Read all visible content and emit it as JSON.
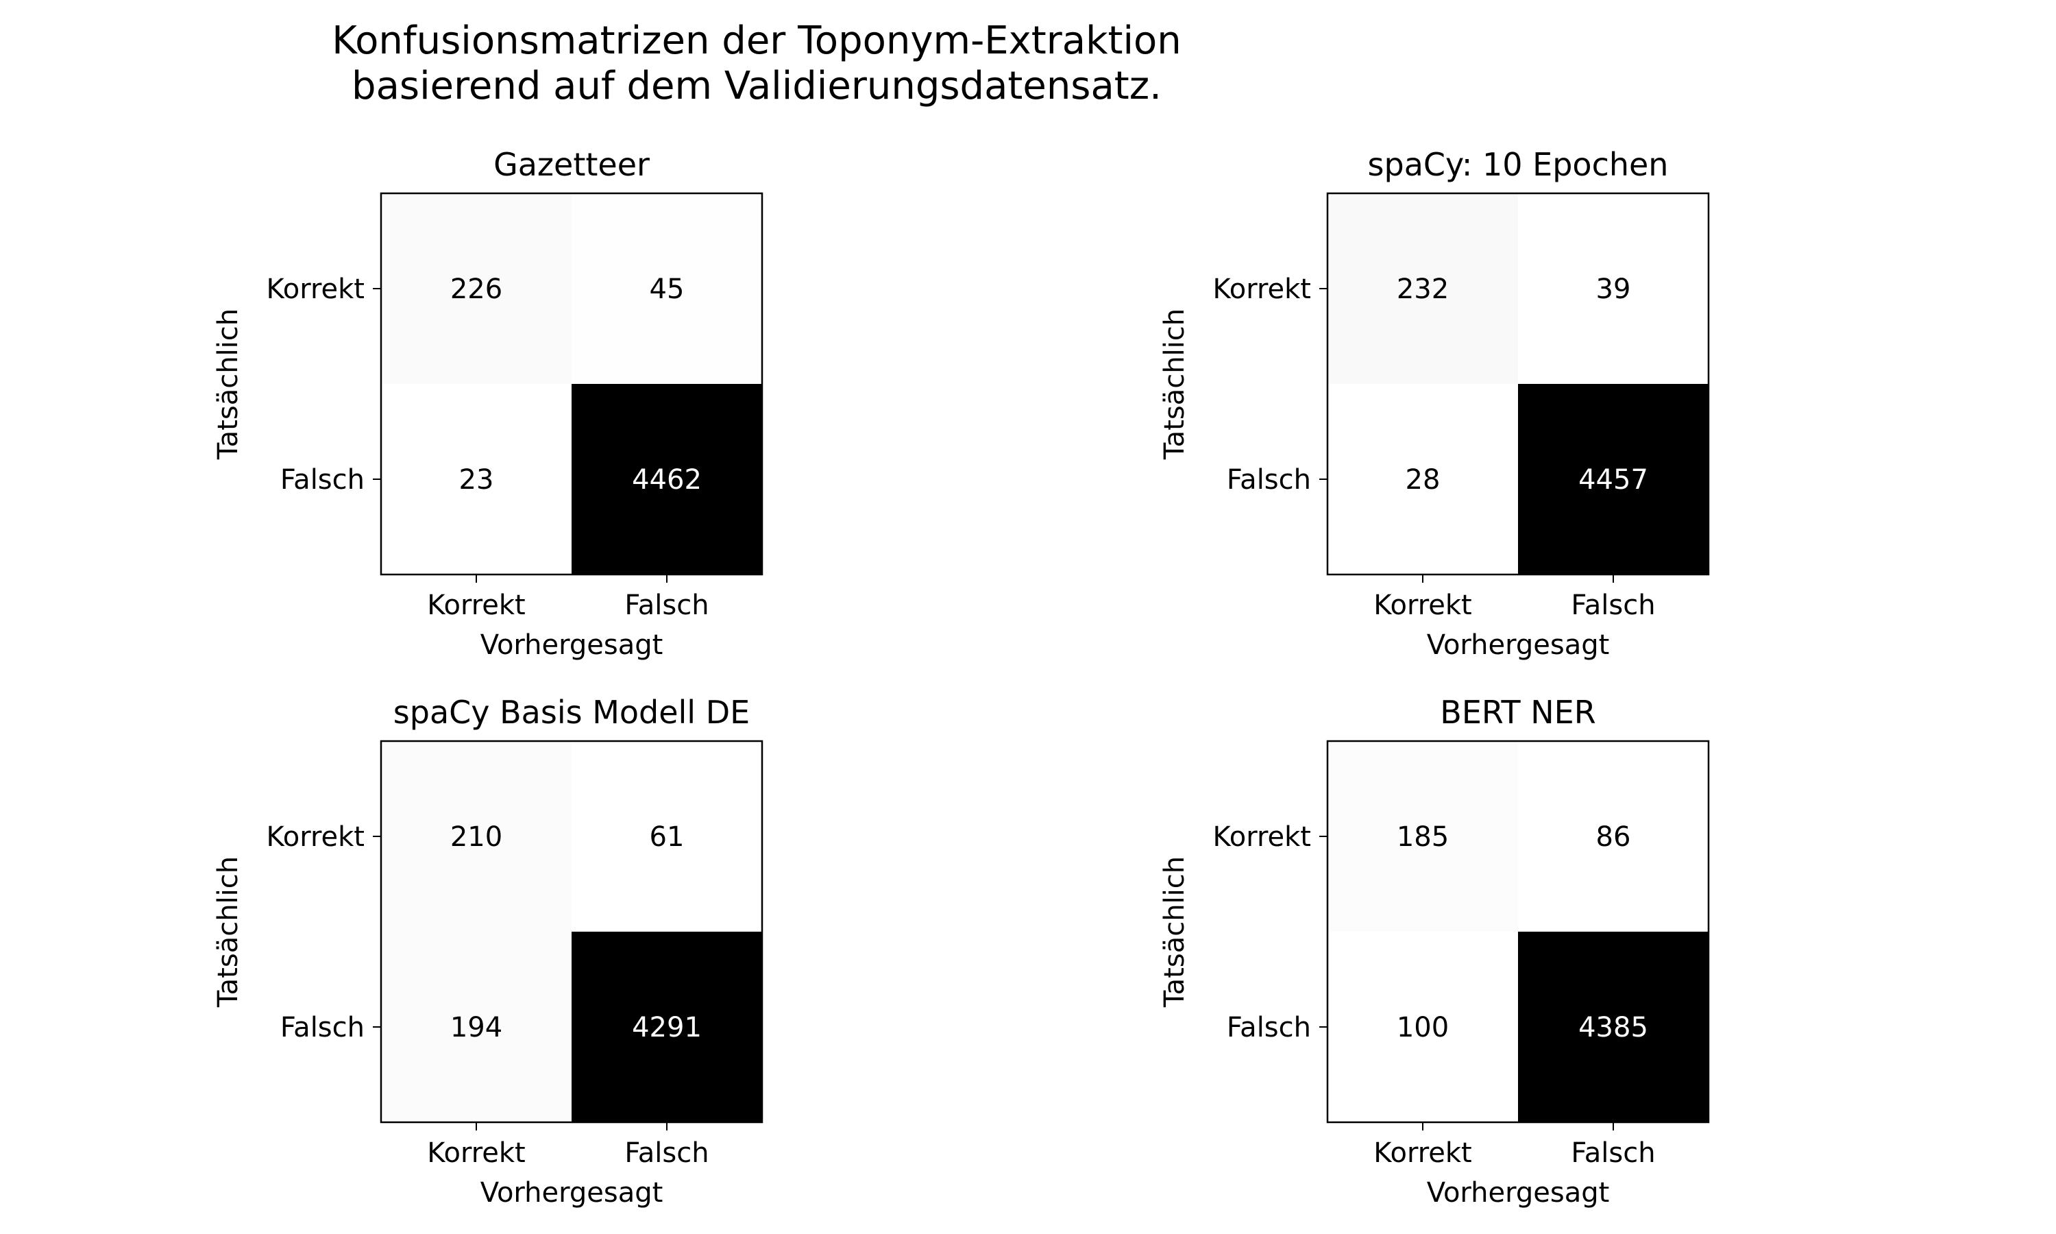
{
  "figure": {
    "title_line1": "Konfusionsmatrizen der Toponym-Extraktion",
    "title_line2": "basierend auf dem Validierungsdatensatz."
  },
  "chart_data": [
    {
      "type": "heatmap",
      "title": "Gazetteer",
      "xlabel": "Vorhergesagt",
      "ylabel": "Tatsächlich",
      "x_categories": [
        "Korrekt",
        "Falsch"
      ],
      "y_categories": [
        "Korrekt",
        "Falsch"
      ],
      "values": [
        [
          226,
          45
        ],
        [
          23,
          4462
        ]
      ],
      "colormap": "Greys"
    },
    {
      "type": "heatmap",
      "title": "spaCy: 10 Epochen",
      "xlabel": "Vorhergesagt",
      "ylabel": "Tatsächlich",
      "x_categories": [
        "Korrekt",
        "Falsch"
      ],
      "y_categories": [
        "Korrekt",
        "Falsch"
      ],
      "values": [
        [
          232,
          39
        ],
        [
          28,
          4457
        ]
      ],
      "colormap": "Greys"
    },
    {
      "type": "heatmap",
      "title": "spaCy Basis Modell DE",
      "xlabel": "Vorhergesagt",
      "ylabel": "Tatsächlich",
      "x_categories": [
        "Korrekt",
        "Falsch"
      ],
      "y_categories": [
        "Korrekt",
        "Falsch"
      ],
      "values": [
        [
          210,
          61
        ],
        [
          194,
          4291
        ]
      ],
      "colormap": "Greys"
    },
    {
      "type": "heatmap",
      "title": "BERT NER",
      "xlabel": "Vorhergesagt",
      "ylabel": "Tatsächlich",
      "x_categories": [
        "Korrekt",
        "Falsch"
      ],
      "y_categories": [
        "Korrekt",
        "Falsch"
      ],
      "values": [
        [
          185,
          86
        ],
        [
          100,
          4385
        ]
      ],
      "colormap": "Greys"
    }
  ]
}
